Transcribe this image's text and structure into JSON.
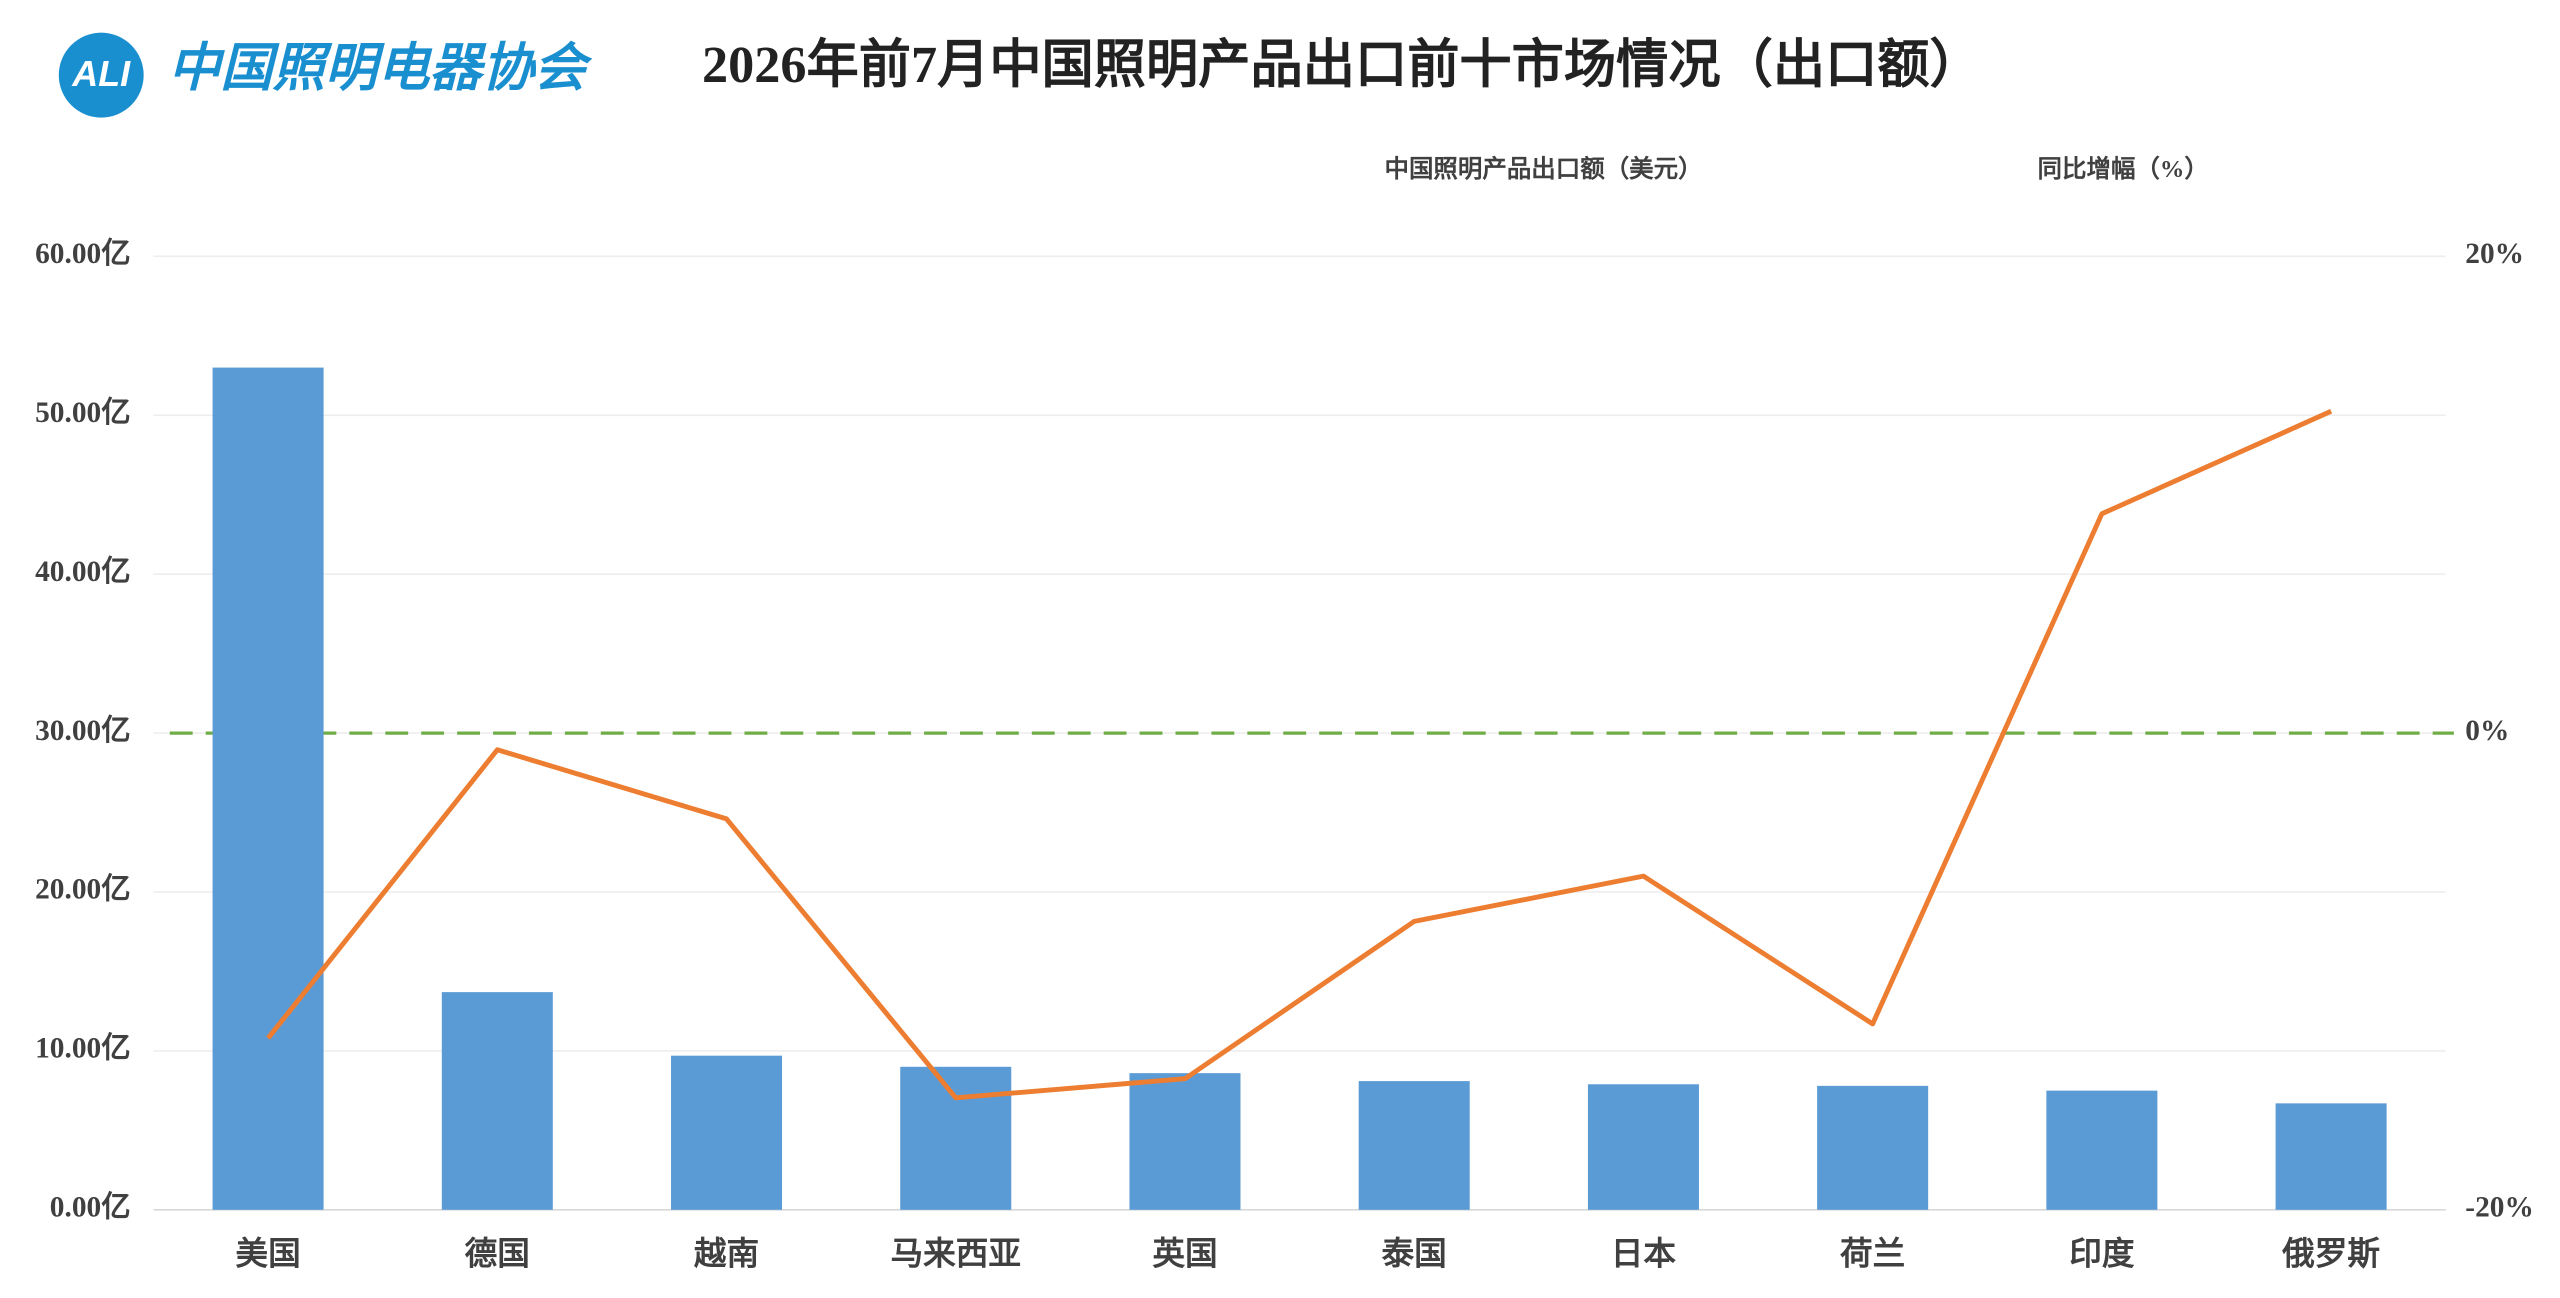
{
  "header": {
    "logo": "ALI",
    "organization": "中国照明电器协会"
  },
  "chart_data": {
    "type": "bar-line",
    "title": "2026年前7月中国照明产品出口前十市场情况（出口额）",
    "categories": [
      "美国",
      "德国",
      "越南",
      "马来西亚",
      "英国",
      "泰国",
      "日本",
      "荷兰",
      "印度",
      "俄罗斯"
    ],
    "series": [
      {
        "name": "中国照明产品出口额（美元）",
        "type": "bar",
        "color": "#5b9bd5",
        "values": [
          53.0,
          13.7,
          9.7,
          9.0,
          8.6,
          8.1,
          7.9,
          7.8,
          7.5,
          6.7
        ]
      },
      {
        "name": "同比增幅（%）",
        "type": "line",
        "axis": "y2",
        "color": "#ed7d31",
        "values": [
          -12.8,
          -0.7,
          -3.6,
          -15.3,
          -14.5,
          -7.9,
          -6.0,
          -12.2,
          9.2,
          13.5
        ]
      }
    ],
    "ylim": [
      0,
      60
    ],
    "yticks": [
      {
        "value": 0,
        "label": "0.00亿"
      },
      {
        "value": 10,
        "label": "10.00亿"
      },
      {
        "value": 20,
        "label": "20.00亿"
      },
      {
        "value": 30,
        "label": "30.00亿"
      },
      {
        "value": 40,
        "label": "40.00亿"
      },
      {
        "value": 50,
        "label": "50.00亿"
      },
      {
        "value": 60,
        "label": "60.00亿"
      }
    ],
    "y2lim": [
      -20,
      20
    ],
    "y2ticks": [
      {
        "value": -20,
        "label": "-20%"
      },
      {
        "value": 0,
        "label": "0%"
      },
      {
        "value": 20,
        "label": "20%"
      }
    ],
    "reference_line": {
      "axis": "y2",
      "value": 0,
      "color": "#70ad47"
    },
    "grid": true
  }
}
